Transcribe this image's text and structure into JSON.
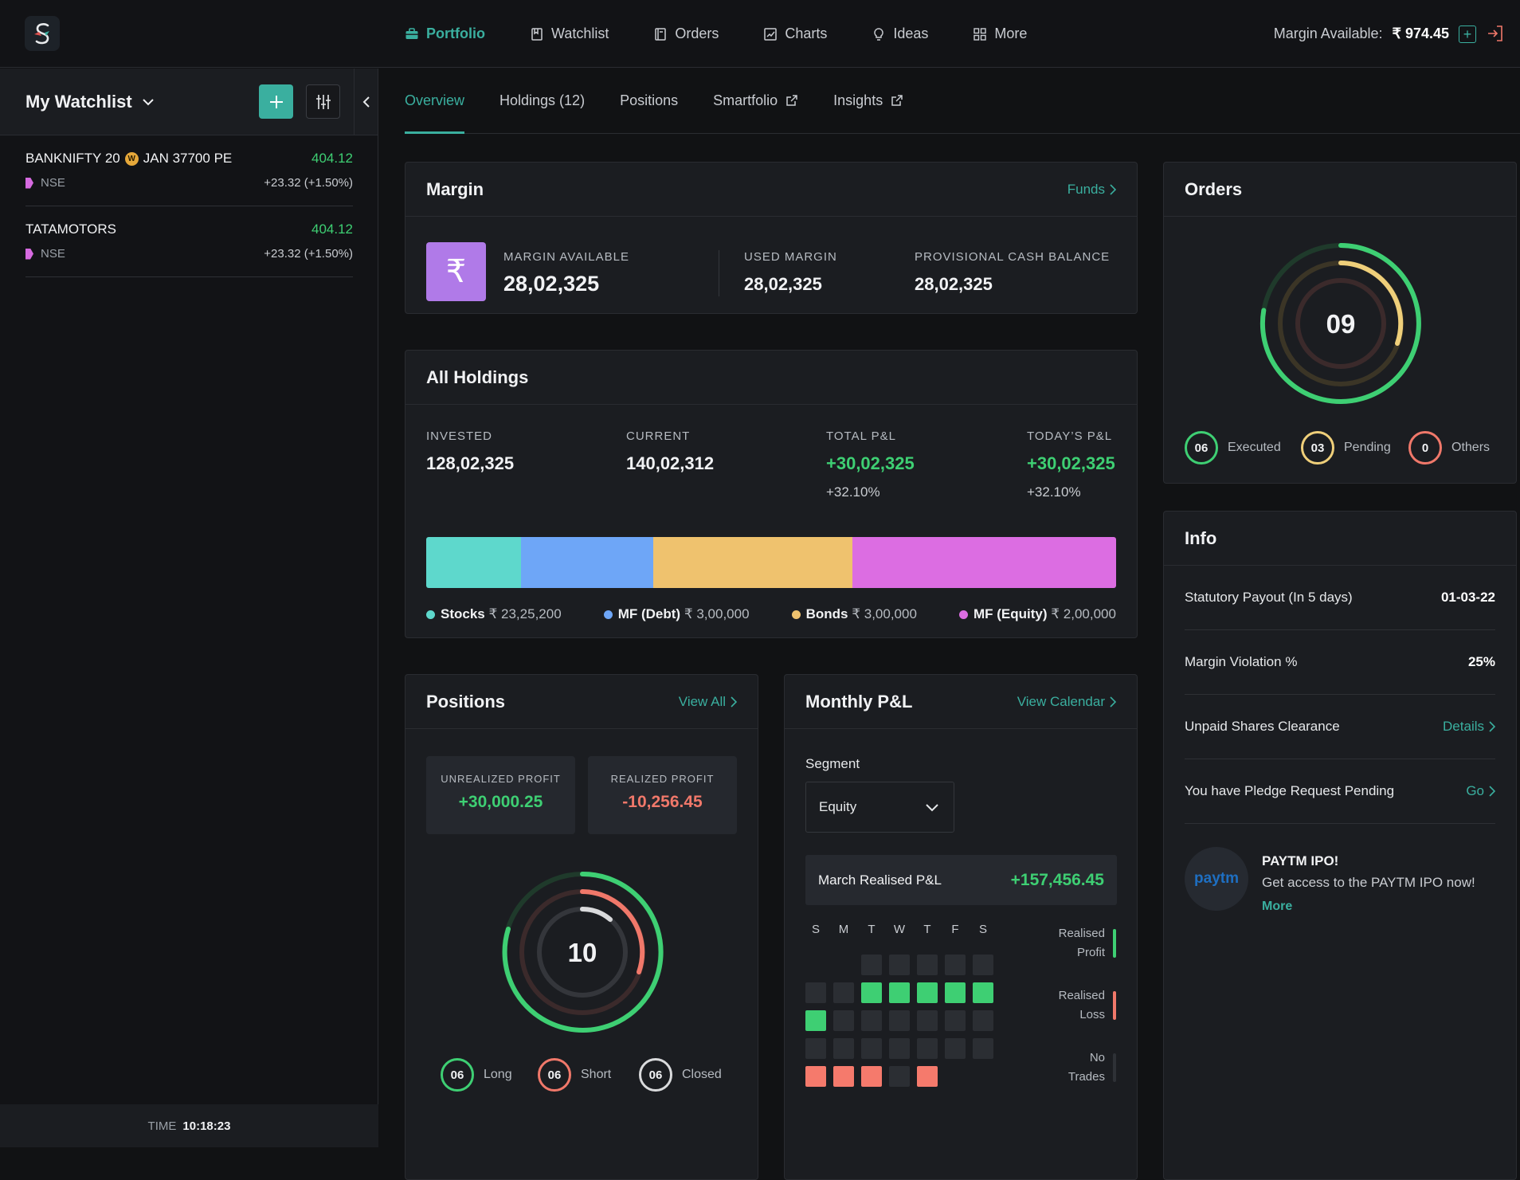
{
  "topbar": {
    "nav": [
      {
        "label": "Portfolio",
        "icon": "briefcase-icon",
        "active": true
      },
      {
        "label": "Watchlist",
        "icon": "bookmark-icon"
      },
      {
        "label": "Orders",
        "icon": "orders-icon"
      },
      {
        "label": "Charts",
        "icon": "chart-icon"
      },
      {
        "label": "Ideas",
        "icon": "bulb-icon"
      },
      {
        "label": "More",
        "icon": "grid-icon"
      }
    ],
    "margin_label": "Margin Available:",
    "margin_value": "₹ 974.45"
  },
  "watchlist": {
    "title": "My Watchlist",
    "items": [
      {
        "name_a": "BANKNIFTY 20",
        "badge": "W",
        "name_b": "JAN 37700 PE",
        "price": "404.12",
        "exchange": "NSE",
        "change": "+23.32 (+1.50%)"
      },
      {
        "name_a": "TATAMOTORS",
        "price": "404.12",
        "exchange": "NSE",
        "change": "+23.32 (+1.50%)"
      }
    ],
    "time_label": "TIME",
    "time_value": "10:18:23"
  },
  "tabs": [
    "Overview",
    "Holdings (12)",
    "Positions",
    "Smartfolio",
    "Insights"
  ],
  "margin": {
    "title": "Margin",
    "link": "Funds",
    "available_label": "MARGIN AVAILABLE",
    "available_value": "28,02,325",
    "used_label": "USED MARGIN",
    "used_value": "28,02,325",
    "cash_label": "PROVISIONAL CASH BALANCE",
    "cash_value": "28,02,325"
  },
  "holdings": {
    "title": "All Holdings",
    "invested_label": "INVESTED",
    "invested_value": "128,02,325",
    "current_label": "CURRENT",
    "current_value": "140,02,312",
    "total_label": "TOTAL P&L",
    "total_value": "+30,02,325",
    "total_pct": "+32.10%",
    "today_label": "TODAY’S P&L",
    "today_value": "+30,02,325",
    "today_pct": "+32.10%",
    "allocation": [
      {
        "name": "Stocks",
        "amount": "₹ 23,25,200",
        "share": 0.137,
        "color": "#5ed8cc"
      },
      {
        "name": "MF (Debt)",
        "amount": "₹ 3,00,000",
        "share": 0.192,
        "color": "#6ea6f7"
      },
      {
        "name": "Bonds",
        "amount": "₹ 3,00,000",
        "share": 0.289,
        "color": "#efc26e"
      },
      {
        "name": "MF (Equity)",
        "amount": "₹ 2,00,000",
        "share": 0.382,
        "color": "#dc6de2"
      }
    ]
  },
  "orders": {
    "title": "Orders",
    "total": "09",
    "executed": "06",
    "executed_label": "Executed",
    "pending": "03",
    "pending_label": "Pending",
    "others": "0",
    "others_label": "Others"
  },
  "info": {
    "title": "Info",
    "rows": [
      {
        "label": "Statutory Payout (In 5 days)",
        "value": "01-03-22"
      },
      {
        "label": "Margin Violation %",
        "value": "25%"
      },
      {
        "label": "Unpaid Shares Clearance",
        "link": "Details"
      },
      {
        "label": "You have Pledge Request Pending",
        "link": "Go"
      }
    ],
    "promo_title": "PAYTM IPO!",
    "promo_text": "Get access to the PAYTM IPO now!",
    "promo_link": "More",
    "promo_logo": "paytm"
  },
  "positions": {
    "title": "Positions",
    "link": "View All",
    "unrealized_label": "UNREALIZED PROFIT",
    "unrealized_value": "+30,000.25",
    "realized_label": "REALIZED PROFIT",
    "realized_value": "-10,256.45",
    "total": "10",
    "long": "06",
    "long_label": "Long",
    "short": "06",
    "short_label": "Short",
    "closed": "06",
    "closed_label": "Closed"
  },
  "monthly": {
    "title": "Monthly P&L",
    "link": "View Calendar",
    "segment_label": "Segment",
    "segment_value": "Equity",
    "realised_label": "March Realised P&L",
    "realised_value": "+157,456.45",
    "days": [
      "S",
      "M",
      "T",
      "W",
      "T",
      "F",
      "S"
    ],
    "legend_profit": "Realised Profit",
    "legend_loss": "Realised Loss",
    "legend_none": "No Trades",
    "calendar": [
      [
        null,
        null,
        "n",
        "n",
        "n",
        "n",
        "n"
      ],
      [
        "n",
        "n",
        "p",
        "p",
        "p",
        "p",
        "p"
      ],
      [
        "p",
        "n",
        "n",
        "n",
        "n",
        "n",
        "n"
      ],
      [
        "n",
        "n",
        "n",
        "n",
        "n",
        "n",
        "n"
      ],
      [
        "l",
        "l",
        "l",
        "n",
        "l",
        null,
        null
      ]
    ]
  },
  "colors": {
    "accent": "#3aaf9f",
    "profit": "#3ecf73",
    "loss": "#f0786a",
    "pending": "#efcf7a"
  }
}
